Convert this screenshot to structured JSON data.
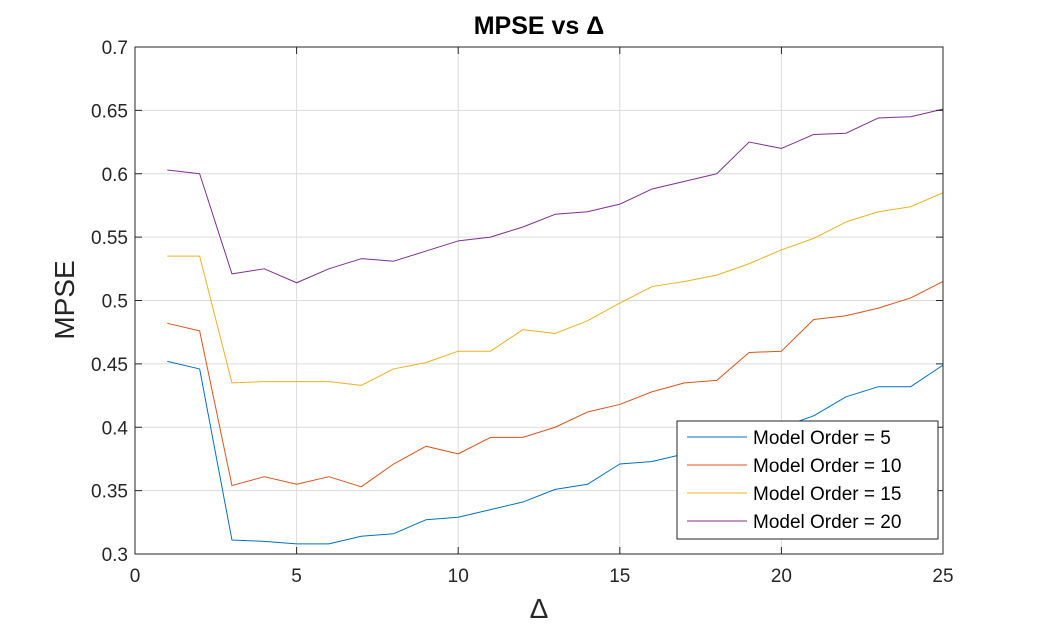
{
  "chart_data": {
    "type": "line",
    "title": "MPSE vs Δ",
    "xlabel": "Δ",
    "ylabel": "MPSE",
    "xlim": [
      0,
      25
    ],
    "ylim": [
      0.3,
      0.7
    ],
    "xticks": [
      0,
      5,
      10,
      15,
      20,
      25
    ],
    "xtick_labels": [
      "0",
      "5",
      "10",
      "15",
      "20",
      "25"
    ],
    "yticks": [
      0.3,
      0.35,
      0.4,
      0.45,
      0.5,
      0.55,
      0.6,
      0.65,
      0.7
    ],
    "ytick_labels": [
      "0.3",
      "0.35",
      "0.4",
      "0.45",
      "0.5",
      "0.55",
      "0.6",
      "0.65",
      "0.7"
    ],
    "grid": true,
    "legend_position": "bottom-right",
    "x": [
      1,
      2,
      3,
      4,
      5,
      6,
      7,
      8,
      9,
      10,
      11,
      12,
      13,
      14,
      15,
      16,
      17,
      18,
      19,
      20,
      21,
      22,
      23,
      24,
      25
    ],
    "series": [
      {
        "name": "Model Order = 5",
        "color": "#0072BD",
        "values": [
          0.452,
          0.446,
          0.311,
          0.31,
          0.308,
          0.308,
          0.314,
          0.316,
          0.327,
          0.329,
          0.335,
          0.341,
          0.351,
          0.355,
          0.371,
          0.373,
          0.379,
          0.386,
          0.393,
          0.4,
          0.409,
          0.424,
          0.432,
          0.432,
          0.449
        ]
      },
      {
        "name": "Model Order = 10",
        "color": "#D95319",
        "values": [
          0.482,
          0.476,
          0.354,
          0.361,
          0.355,
          0.361,
          0.353,
          0.371,
          0.385,
          0.379,
          0.392,
          0.392,
          0.4,
          0.412,
          0.418,
          0.428,
          0.435,
          0.437,
          0.459,
          0.46,
          0.485,
          0.488,
          0.494,
          0.502,
          0.515
        ]
      },
      {
        "name": "Model Order = 15",
        "color": "#EDB120",
        "values": [
          0.535,
          0.535,
          0.435,
          0.436,
          0.436,
          0.436,
          0.433,
          0.446,
          0.451,
          0.46,
          0.46,
          0.477,
          0.474,
          0.484,
          0.498,
          0.511,
          0.515,
          0.52,
          0.529,
          0.54,
          0.549,
          0.562,
          0.57,
          0.574,
          0.585
        ]
      },
      {
        "name": "Model Order = 20",
        "color": "#7E2F8E",
        "values": [
          0.603,
          0.6,
          0.521,
          0.525,
          0.514,
          0.525,
          0.533,
          0.531,
          0.539,
          0.547,
          0.55,
          0.558,
          0.568,
          0.57,
          0.576,
          0.588,
          0.594,
          0.6,
          0.625,
          0.62,
          0.631,
          0.632,
          0.644,
          0.645,
          0.651
        ]
      }
    ]
  }
}
